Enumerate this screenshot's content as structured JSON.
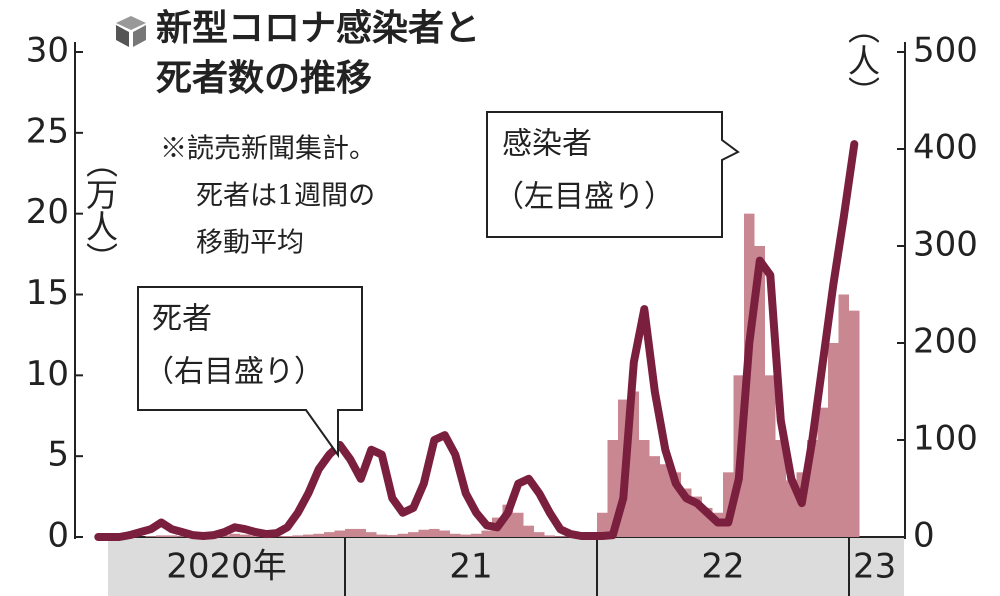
{
  "chart_data": {
    "type": "bar_line",
    "title": [
      "新型コロナ感染者と",
      "死者数の推移"
    ],
    "note": [
      "※読売新聞集計。",
      "死者は1週間の",
      "移動平均"
    ],
    "y_label": "（万人）",
    "y2_label": "（人）",
    "categories": [
      null,
      null,
      null,
      null,
      null,
      null,
      null,
      null,
      null,
      null,
      null,
      null,
      null,
      null,
      null,
      null,
      null,
      null,
      null,
      null,
      null,
      null,
      null,
      null,
      null,
      null,
      null,
      null,
      null,
      null,
      null,
      null,
      null,
      null,
      null,
      null,
      null,
      null,
      null,
      null,
      null,
      null,
      null,
      null,
      null,
      null,
      null,
      null,
      null,
      null,
      null,
      null,
      null,
      null,
      null,
      null,
      null,
      null,
      null,
      null,
      null,
      null,
      null,
      null,
      null,
      null,
      null,
      null,
      null,
      null,
      null,
      null,
      null,
      null
    ],
    "year_labels": [
      "2020年",
      "21",
      "22",
      "23"
    ],
    "series": [
      {
        "name": "感染者",
        "note": "（左目盛り）",
        "type": "bar",
        "axis": "y",
        "color": "#c98792",
        "values": [
          0,
          0,
          0,
          0,
          0,
          0.05,
          0.1,
          0.1,
          0.05,
          0.03,
          0.02,
          0.03,
          0.1,
          0.2,
          0.15,
          0.1,
          0.08,
          0.05,
          0.06,
          0.1,
          0.15,
          0.2,
          0.3,
          0.4,
          0.5,
          0.5,
          0.3,
          0.15,
          0.12,
          0.2,
          0.3,
          0.45,
          0.5,
          0.4,
          0.2,
          0.15,
          0.2,
          0.4,
          1.2,
          2,
          1.5,
          0.7,
          0.3,
          0.1,
          0.05,
          0.03,
          0.03,
          0.03,
          1.5,
          6,
          8.5,
          9,
          6,
          5,
          4.5,
          4,
          3,
          2.5,
          1.8,
          1.5,
          4,
          10,
          20,
          18,
          10,
          6,
          3.5,
          4,
          6,
          8,
          12,
          15,
          14,
          null
        ]
      },
      {
        "name": "死者",
        "note": "（右目盛り）",
        "type": "line",
        "axis": "y2",
        "color": "#7b1f3f",
        "values": [
          0,
          0,
          0,
          2,
          5,
          8,
          15,
          8,
          5,
          2,
          1,
          2,
          5,
          10,
          8,
          5,
          3,
          4,
          10,
          25,
          45,
          70,
          85,
          95,
          80,
          60,
          90,
          85,
          40,
          25,
          30,
          55,
          100,
          105,
          85,
          45,
          25,
          12,
          10,
          25,
          55,
          60,
          45,
          25,
          8,
          3,
          1,
          1,
          1,
          2,
          40,
          180,
          235,
          150,
          90,
          55,
          40,
          35,
          25,
          15,
          15,
          60,
          200,
          285,
          270,
          120,
          60,
          35,
          100,
          180,
          260,
          330,
          405,
          null
        ]
      }
    ],
    "ylim": [
      0,
      30
    ],
    "yticks": [
      0,
      5,
      10,
      15,
      20,
      25,
      30
    ],
    "y2lim": [
      0,
      500
    ],
    "y2ticks": [
      0,
      100,
      200,
      300,
      400,
      500
    ]
  }
}
